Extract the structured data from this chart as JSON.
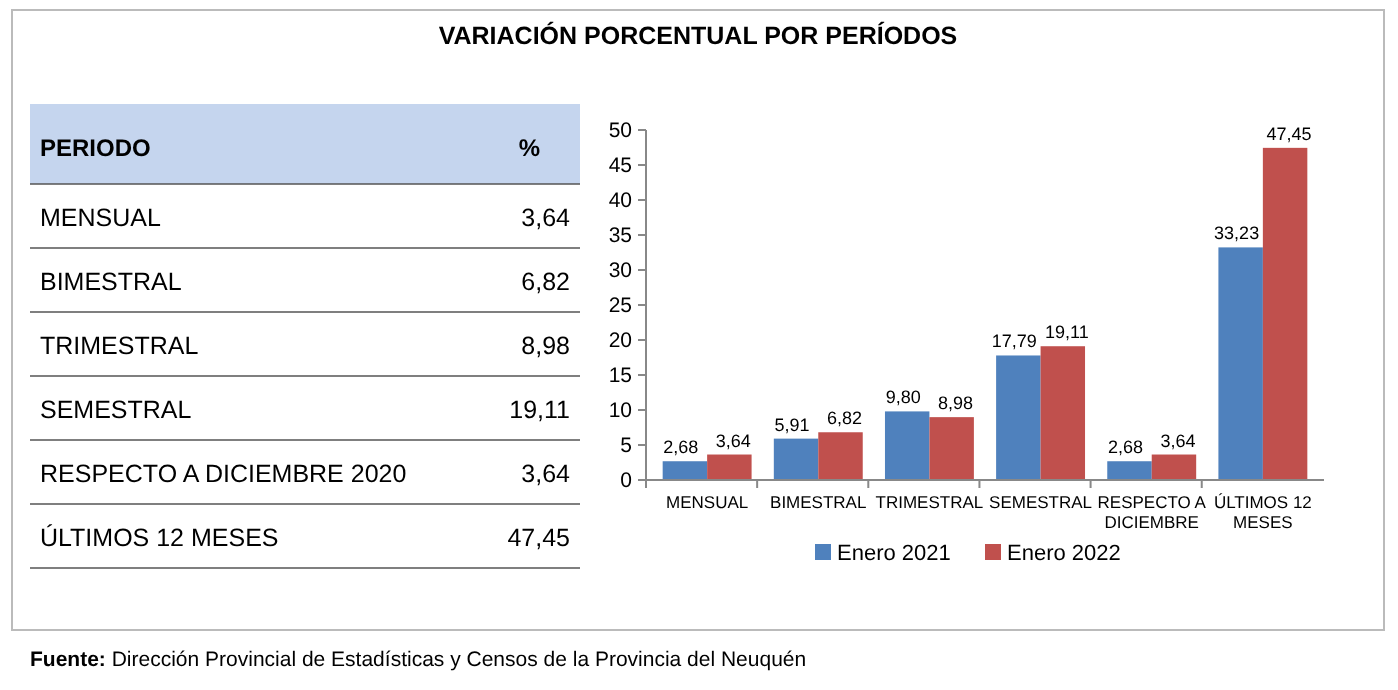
{
  "chart_data": [
    {
      "type": "other",
      "title": "VARIACIÓN PORCENTUAL POR PERÍODOS",
      "xlabel": "PERIODO",
      "ylabel": "%",
      "categories": [
        "MENSUAL",
        "BIMESTRAL",
        "TRIMESTRAL",
        "SEMESTRAL",
        "RESPECTO A DICIEMBRE 2020",
        "ÚLTIMOS 12 MESES"
      ],
      "value_labels": [
        "3,64",
        "6,82",
        "8,98",
        "19,11",
        "3,64",
        "47,45"
      ]
    },
    {
      "type": "bar",
      "categories": [
        "MENSUAL",
        "BIMESTRAL",
        "TRIMESTRAL",
        "SEMESTRAL",
        "RESPECTO A DICIEMBRE",
        "ÚLTIMOS 12 MESES"
      ],
      "series": [
        {
          "name": "Enero 2021",
          "color": "#4f81bd",
          "values": [
            2.68,
            5.91,
            9.8,
            17.79,
            2.68,
            33.23
          ],
          "value_labels": [
            "2,68",
            "5,91",
            "9,80",
            "17,79",
            "2,68",
            "33,23"
          ]
        },
        {
          "name": "Enero 2022",
          "color": "#c0504d",
          "values": [
            3.64,
            6.82,
            8.98,
            19.11,
            3.64,
            47.45
          ],
          "value_labels": [
            "3,64",
            "6,82",
            "8,98",
            "19,11",
            "3,64",
            "47,45"
          ]
        }
      ],
      "ylim": [
        0,
        50
      ],
      "yticks": [
        0,
        5,
        10,
        15,
        20,
        25,
        30,
        35,
        40,
        45,
        50
      ],
      "grid": false,
      "legend": "bottom",
      "annotations": [
        "Fuente: Dirección Provincial de Estadísticas y Censos de la Provincia del Neuquén"
      ]
    }
  ]
}
